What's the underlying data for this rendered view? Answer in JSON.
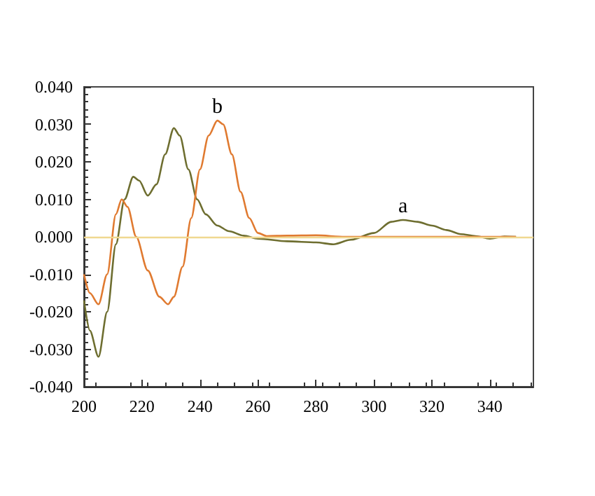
{
  "chart_data": {
    "type": "line",
    "xlim": [
      200,
      355
    ],
    "xticks": [
      200,
      220,
      240,
      260,
      280,
      300,
      320,
      340
    ],
    "ylim": [
      -0.04,
      0.04
    ],
    "yticks": [
      {
        "value": -0.04,
        "label": "-0.040"
      },
      {
        "value": -0.03,
        "label": "-0.030"
      },
      {
        "value": -0.02,
        "label": "-0.020"
      },
      {
        "value": -0.01,
        "label": "-0.010"
      },
      {
        "value": 0,
        "label": "0.000"
      },
      {
        "value": 0.01,
        "label": "0.010"
      },
      {
        "value": 0.02,
        "label": "0.020"
      },
      {
        "value": 0.03,
        "label": "0.030"
      },
      {
        "value": 0.04,
        "label": "0.040"
      }
    ],
    "grid": false,
    "marker": "none",
    "line_style": "solid",
    "series": [
      {
        "color": "#6e6e30",
        "x": [
          200,
          202,
          205,
          208,
          211,
          214,
          217,
          219,
          222,
          225,
          228,
          231,
          233,
          236,
          239,
          242,
          246,
          250,
          255,
          260,
          270,
          280,
          286,
          292,
          300,
          306,
          310,
          315,
          320,
          325,
          330,
          335,
          340,
          345,
          349
        ],
        "values": [
          -0.017,
          -0.025,
          -0.032,
          -0.02,
          -0.002,
          0.01,
          0.016,
          0.015,
          0.011,
          0.014,
          0.022,
          0.029,
          0.027,
          0.018,
          0.01,
          0.006,
          0.003,
          0.0015,
          0.0003,
          -0.0005,
          -0.0012,
          -0.0015,
          -0.002,
          -0.0008,
          0.001,
          0.004,
          0.0045,
          0.004,
          0.003,
          0.0018,
          0.0007,
          0.0002,
          -0.0005,
          0.0001,
          0
        ]
      },
      {
        "color": "#e07a30",
        "x": [
          200,
          202,
          205,
          208,
          211,
          213,
          215,
          218,
          222,
          226,
          229,
          231,
          234,
          237,
          240,
          243,
          246,
          248,
          251,
          254,
          257,
          260,
          263,
          270,
          280,
          290,
          300,
          349
        ],
        "values": [
          -0.01,
          -0.015,
          -0.018,
          -0.01,
          0.006,
          0.01,
          0.008,
          0,
          -0.009,
          -0.016,
          -0.018,
          -0.016,
          -0.008,
          0.005,
          0.018,
          0.027,
          0.031,
          0.03,
          0.022,
          0.012,
          0.005,
          0.001,
          0.0002,
          0.0003,
          0.0004,
          0,
          0,
          0
        ]
      }
    ],
    "ref_lines": [
      {
        "axis": "y",
        "value": 0,
        "color": "#f0d890"
      }
    ],
    "annotations": [
      {
        "text": "a",
        "x": 310,
        "y": 0.0045
      },
      {
        "text": "b",
        "x": 246,
        "y": 0.031
      }
    ]
  }
}
